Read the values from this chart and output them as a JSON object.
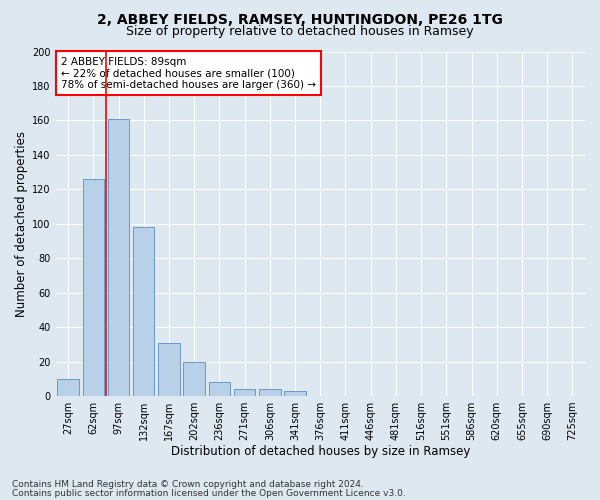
{
  "title": "2, ABBEY FIELDS, RAMSEY, HUNTINGDON, PE26 1TG",
  "subtitle": "Size of property relative to detached houses in Ramsey",
  "xlabel": "Distribution of detached houses by size in Ramsey",
  "ylabel": "Number of detached properties",
  "bar_labels": [
    "27sqm",
    "62sqm",
    "97sqm",
    "132sqm",
    "167sqm",
    "202sqm",
    "236sqm",
    "271sqm",
    "306sqm",
    "341sqm",
    "376sqm",
    "411sqm",
    "446sqm",
    "481sqm",
    "516sqm",
    "551sqm",
    "586sqm",
    "620sqm",
    "655sqm",
    "690sqm",
    "725sqm"
  ],
  "bar_values": [
    10,
    126,
    161,
    98,
    31,
    20,
    8,
    4,
    4,
    3,
    0,
    0,
    0,
    0,
    0,
    0,
    0,
    0,
    0,
    0,
    0
  ],
  "bar_color": "#b8d0e8",
  "bar_edge_color": "#6699cc",
  "red_line_index": 2,
  "annotation_text": "2 ABBEY FIELDS: 89sqm\n← 22% of detached houses are smaller (100)\n78% of semi-detached houses are larger (360) →",
  "ylim": [
    0,
    200
  ],
  "yticks": [
    0,
    20,
    40,
    60,
    80,
    100,
    120,
    140,
    160,
    180,
    200
  ],
  "footnote1": "Contains HM Land Registry data © Crown copyright and database right 2024.",
  "footnote2": "Contains public sector information licensed under the Open Government Licence v3.0.",
  "background_color": "#dde8f0",
  "plot_background": "#dde8f0",
  "grid_color": "white",
  "title_fontsize": 10,
  "subtitle_fontsize": 9,
  "xlabel_fontsize": 8.5,
  "ylabel_fontsize": 8.5,
  "tick_fontsize": 7,
  "annotation_fontsize": 7.5,
  "footnote_fontsize": 6.5
}
